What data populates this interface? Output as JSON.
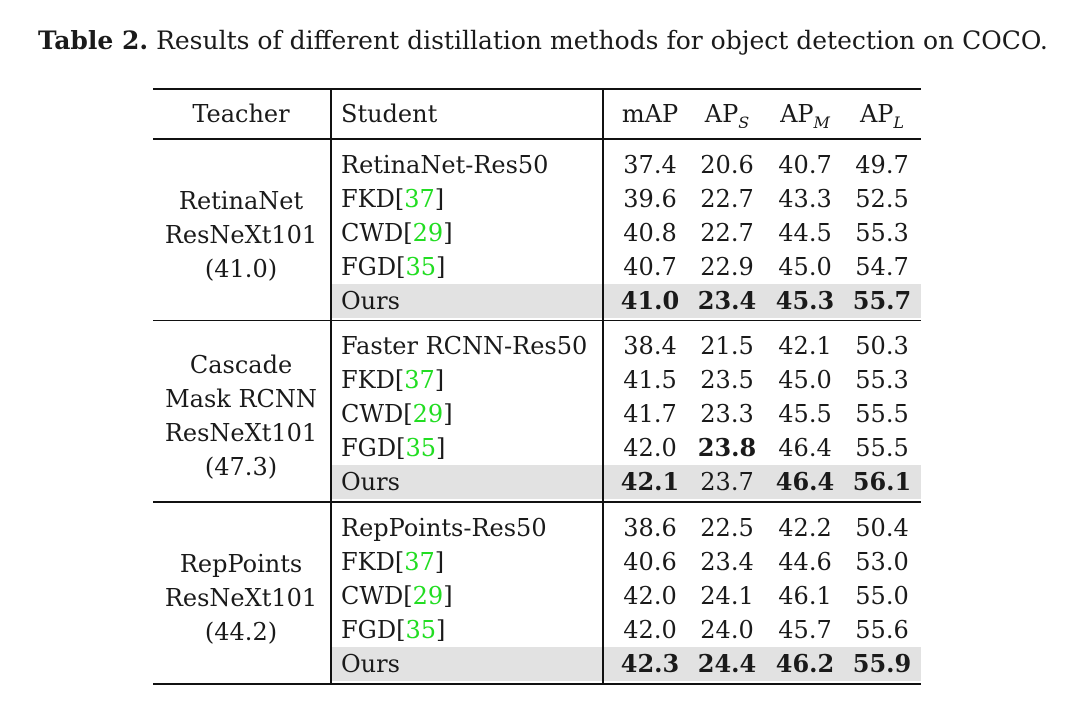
{
  "caption": {
    "label": "Table 2.",
    "text": "Results of different distillation methods for object detection on COCO."
  },
  "headers": {
    "teacher": "Teacher",
    "student": "Student",
    "map": "mAP",
    "aps": "AP",
    "aps_sub": "S",
    "apm": "AP",
    "apm_sub": "M",
    "apl": "AP",
    "apl_sub": "L"
  },
  "groups": [
    {
      "teacher_lines": [
        "RetinaNet",
        "ResNeXt101",
        "(41.0)"
      ],
      "rows": [
        {
          "name": "RetinaNet-Res50",
          "ref": "",
          "map": "37.4",
          "aps": "20.6",
          "apm": "40.7",
          "apl": "49.7"
        },
        {
          "name": "FKD[",
          "ref": "37",
          "map": "39.6",
          "aps": "22.7",
          "apm": "43.3",
          "apl": "52.5"
        },
        {
          "name": "CWD[",
          "ref": "29",
          "map": "40.8",
          "aps": "22.7",
          "apm": "44.5",
          "apl": "55.3"
        },
        {
          "name": "FGD[",
          "ref": "35",
          "map": "40.7",
          "aps": "22.9",
          "apm": "45.0",
          "apl": "54.7"
        },
        {
          "name": "Ours",
          "ref": "",
          "map": "41.0",
          "aps": "23.4",
          "apm": "45.3",
          "apl": "55.7"
        }
      ]
    },
    {
      "teacher_lines": [
        "Cascade",
        "Mask RCNN",
        "ResNeXt101",
        "(47.3)"
      ],
      "rows": [
        {
          "name": "Faster RCNN-Res50",
          "ref": "",
          "map": "38.4",
          "aps": "21.5",
          "apm": "42.1",
          "apl": "50.3"
        },
        {
          "name": "FKD[",
          "ref": "37",
          "map": "41.5",
          "aps": "23.5",
          "apm": "45.0",
          "apl": "55.3"
        },
        {
          "name": "CWD[",
          "ref": "29",
          "map": "41.7",
          "aps": "23.3",
          "apm": "45.5",
          "apl": "55.5"
        },
        {
          "name": "FGD[",
          "ref": "35",
          "map": "42.0",
          "aps": "23.8",
          "apm": "46.4",
          "apl": "55.5"
        },
        {
          "name": "Ours",
          "ref": "",
          "map": "42.1",
          "aps": "23.7",
          "apm": "46.4",
          "apl": "56.1"
        }
      ]
    },
    {
      "teacher_lines": [
        "RepPoints",
        "ResNeXt101",
        "(44.2)"
      ],
      "rows": [
        {
          "name": "RepPoints-Res50",
          "ref": "",
          "map": "38.6",
          "aps": "22.5",
          "apm": "42.2",
          "apl": "50.4"
        },
        {
          "name": "FKD[",
          "ref": "37",
          "map": "40.6",
          "aps": "23.4",
          "apm": "44.6",
          "apl": "53.0"
        },
        {
          "name": "CWD[",
          "ref": "29",
          "map": "42.0",
          "aps": "24.1",
          "apm": "46.1",
          "apl": "55.0"
        },
        {
          "name": "FGD[",
          "ref": "35",
          "map": "42.0",
          "aps": "24.0",
          "apm": "45.7",
          "apl": "55.6"
        },
        {
          "name": "Ours",
          "ref": "",
          "map": "42.3",
          "aps": "24.4",
          "apm": "46.2",
          "apl": "55.9"
        }
      ]
    }
  ],
  "bold_cells": [
    {
      "group": 0,
      "row": 4,
      "cols": [
        "map",
        "aps",
        "apm",
        "apl"
      ]
    },
    {
      "group": 1,
      "row": 3,
      "cols": [
        "aps"
      ]
    },
    {
      "group": 1,
      "row": 4,
      "cols": [
        "map",
        "apm",
        "apl"
      ]
    },
    {
      "group": 2,
      "row": 4,
      "cols": [
        "map",
        "aps",
        "apm",
        "apl"
      ]
    }
  ]
}
